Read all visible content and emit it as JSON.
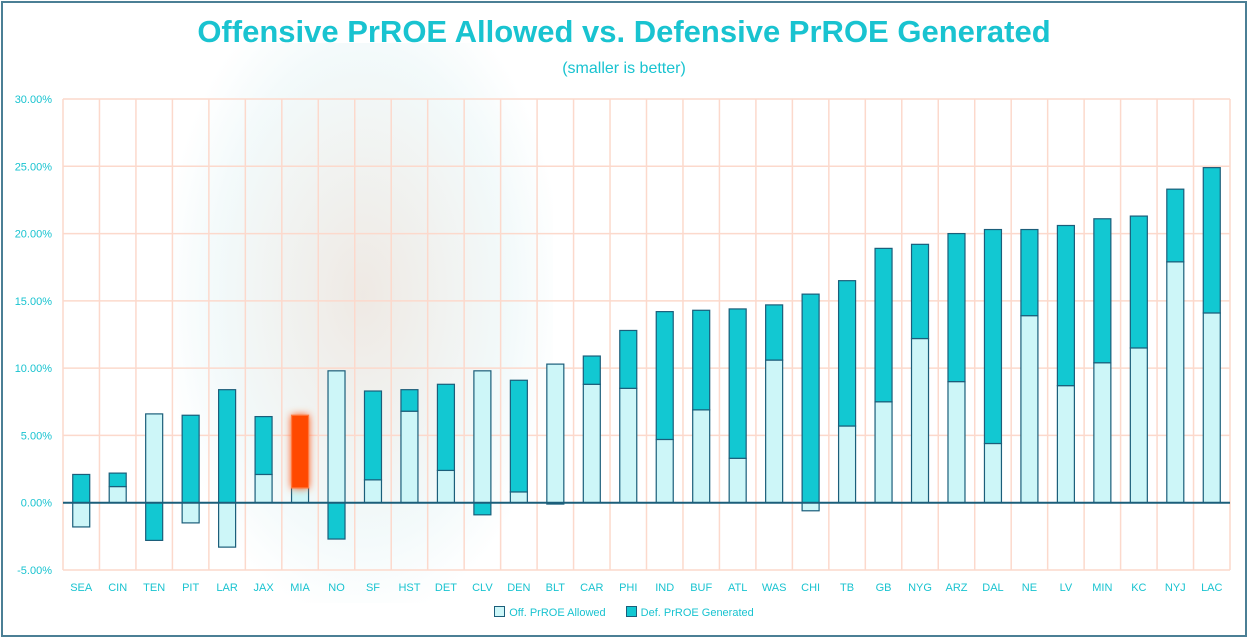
{
  "chart_data": {
    "type": "bar",
    "stacked": true,
    "title": "Offensive PrROE Allowed vs. Defensive PrROE Generated",
    "subtitle": "(smaller is better)",
    "xlabel": "",
    "ylabel": "",
    "ylim": [
      -5,
      30
    ],
    "yticks": [
      "30.00%",
      "25.00%",
      "20.00%",
      "15.00%",
      "10.00%",
      "5.00%",
      "0.00%",
      "-5.00%"
    ],
    "grid": true,
    "legend_position": "bottom",
    "categories": [
      "SEA",
      "CIN",
      "TEN",
      "PIT",
      "LAR",
      "JAX",
      "MIA",
      "NO",
      "SF",
      "HST",
      "DET",
      "CLV",
      "DEN",
      "BLT",
      "CAR",
      "PHI",
      "IND",
      "BUF",
      "ATL",
      "WAS",
      "CHI",
      "TB",
      "GB",
      "NYG",
      "ARZ",
      "DAL",
      "NE",
      "LV",
      "MIN",
      "KC",
      "NYJ",
      "LAC"
    ],
    "highlight": "MIA",
    "series": [
      {
        "name": "Off. PrROE Allowed",
        "color": "#cdf6f8",
        "values": [
          -1.8,
          1.2,
          6.6,
          -1.5,
          -3.3,
          2.1,
          1.1,
          9.8,
          1.7,
          6.8,
          2.4,
          9.8,
          0.8,
          10.3,
          8.8,
          8.5,
          4.7,
          6.9,
          3.3,
          10.6,
          -0.6,
          5.7,
          7.5,
          12.2,
          9.0,
          4.4,
          13.9,
          8.7,
          10.4,
          11.5,
          17.9,
          14.1
        ]
      },
      {
        "name": "Def. PrROE Generated",
        "color": "#12c8d2",
        "values": [
          2.1,
          1.0,
          -2.8,
          6.5,
          8.4,
          4.3,
          5.4,
          -2.7,
          6.6,
          1.6,
          6.4,
          -0.9,
          8.3,
          -0.1,
          2.1,
          4.3,
          9.5,
          7.4,
          11.1,
          4.1,
          15.5,
          10.8,
          11.4,
          7.0,
          11.0,
          15.9,
          6.4,
          11.9,
          10.7,
          9.8,
          5.4,
          10.8
        ]
      }
    ],
    "colors": {
      "highlight": "#ff4a00",
      "outline": "#1b5e7a",
      "grid": "#fcd9cc",
      "text": "#19c3d0"
    }
  }
}
